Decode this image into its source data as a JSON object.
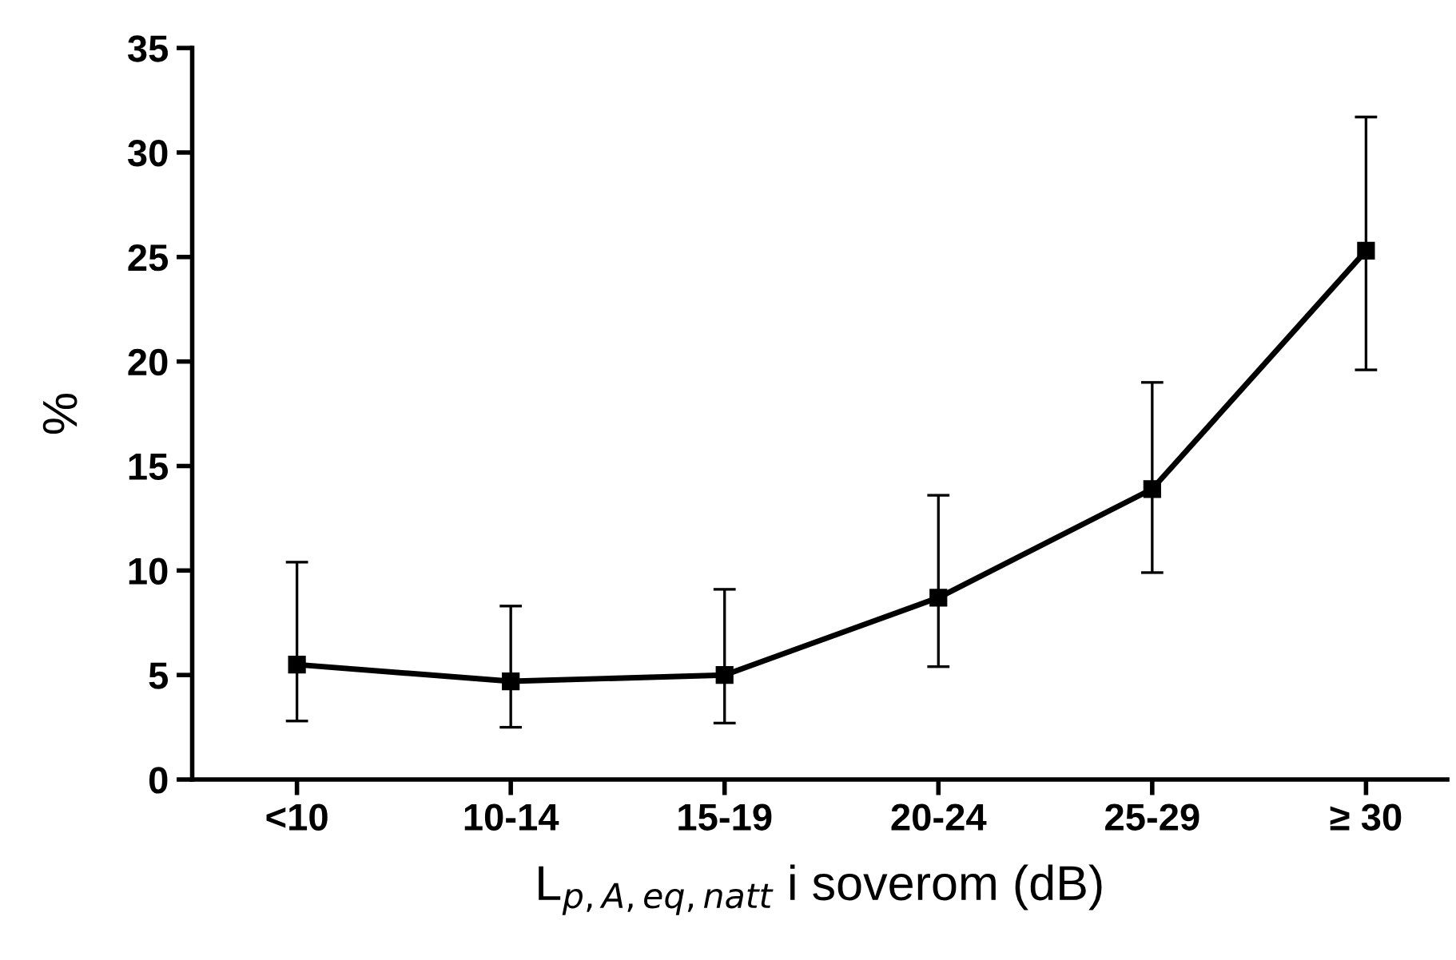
{
  "chart_data": {
    "type": "line",
    "xlabel": "L$_{p,A,eq,natt}$ i soverom (dB)",
    "ylabel": "%",
    "categories": [
      "<10",
      "10-14",
      "15-19",
      "20-24",
      "25-29",
      "≥ 30"
    ],
    "series": [
      {
        "color": "#000000",
        "values": [
          5.5,
          4.7,
          5.0,
          8.7,
          13.9,
          25.3
        ],
        "errors": [
          [
            2.8,
            10.4
          ],
          [
            2.5,
            8.3
          ],
          [
            2.7,
            9.1
          ],
          [
            5.4,
            13.6
          ],
          [
            9.9,
            19.0
          ],
          [
            19.6,
            31.7
          ]
        ]
      }
    ],
    "ylim": [
      0,
      35
    ],
    "yticks": [
      0,
      5,
      10,
      15,
      20,
      25,
      30,
      35
    ],
    "marker": "square",
    "line_style": "solid",
    "grid": false,
    "legend": false
  }
}
